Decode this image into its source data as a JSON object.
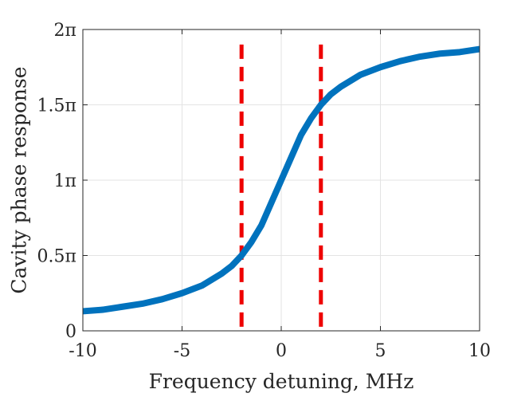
{
  "chart_data": {
    "type": "line",
    "title": "",
    "xlabel": "Frequency detuning, MHz",
    "ylabel": "Cavity phase response",
    "xlim": [
      -10,
      10
    ],
    "ylim": [
      0,
      2
    ],
    "y_unit": "π",
    "grid": true,
    "x_ticks": [
      {
        "value": -10,
        "label": "-10"
      },
      {
        "value": -5,
        "label": "-5"
      },
      {
        "value": 0,
        "label": "0"
      },
      {
        "value": 5,
        "label": "5"
      },
      {
        "value": 10,
        "label": "10"
      }
    ],
    "y_ticks": [
      {
        "value": 0,
        "label": "0"
      },
      {
        "value": 0.5,
        "label": "0.5π"
      },
      {
        "value": 1,
        "label": "1π"
      },
      {
        "value": 1.5,
        "label": "1.5π"
      },
      {
        "value": 2,
        "label": "2π"
      }
    ],
    "series": [
      {
        "color": "#0072bd",
        "style": "solid",
        "x": [
          -10,
          -9,
          -8,
          -7,
          -6,
          -5,
          -4,
          -3,
          -2.5,
          -2,
          -1.5,
          -1,
          -0.5,
          0,
          0.5,
          1,
          1.5,
          2,
          2.5,
          3,
          4,
          5,
          6,
          7,
          8,
          9,
          10
        ],
        "y": [
          0.13,
          0.14,
          0.16,
          0.18,
          0.21,
          0.25,
          0.3,
          0.38,
          0.43,
          0.5,
          0.59,
          0.7,
          0.85,
          1.0,
          1.15,
          1.3,
          1.41,
          1.5,
          1.57,
          1.62,
          1.7,
          1.75,
          1.79,
          1.82,
          1.84,
          1.85,
          1.87
        ]
      }
    ],
    "vertical_lines": [
      {
        "x": -2,
        "y_range": [
          0,
          1.9
        ],
        "color": "#ee0000",
        "style": "dashed"
      },
      {
        "x": 2,
        "y_range": [
          0,
          1.9
        ],
        "color": "#ee0000",
        "style": "dashed"
      }
    ]
  }
}
